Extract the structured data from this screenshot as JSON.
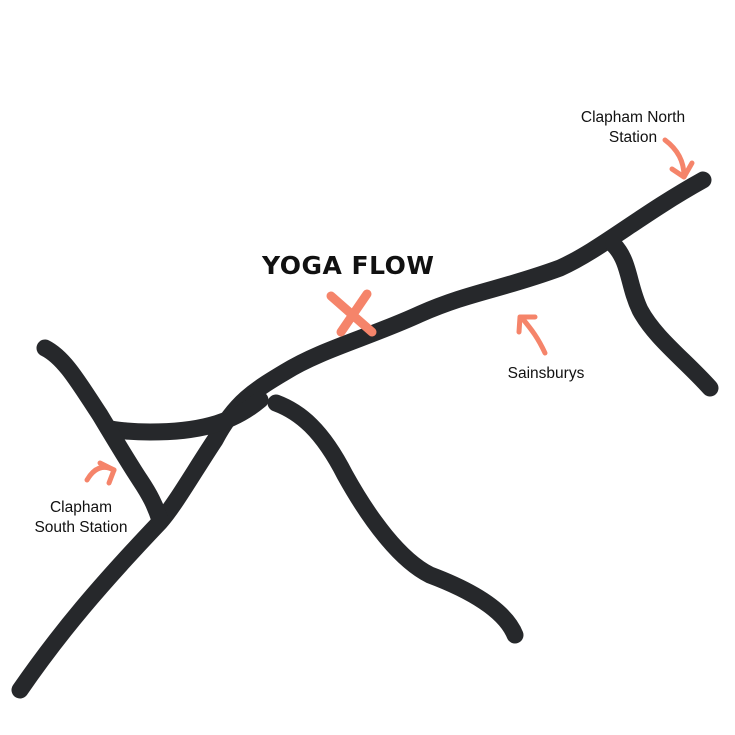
{
  "map": {
    "title": "YOGA FLOW",
    "labels": {
      "clapham_north": [
        "Clapham North",
        "Station"
      ],
      "sainsburys": "Sainsburys",
      "clapham_south": [
        "Clapham",
        "South Station"
      ]
    },
    "colors": {
      "road": "#26282b",
      "accent": "#f5846a",
      "text": "#111111"
    },
    "icons": {
      "location": "x-mark-icon",
      "pointer": "arrow-icon"
    }
  }
}
